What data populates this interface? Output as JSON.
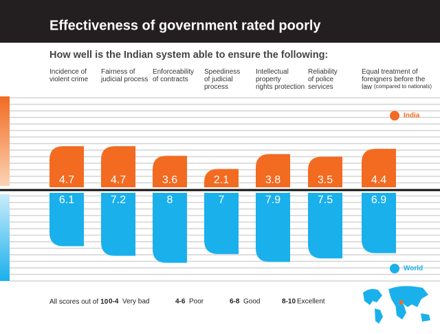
{
  "chart_data": {
    "type": "bar",
    "title": "Effectiveness of government rated poorly",
    "subtitle": "How well is the Indian system able to ensure the following:",
    "categories": [
      "Incidence of\nviolent crime",
      "Fairness of\njudicial process",
      "Enforceability\nof contracts",
      "Speediness\nof judicial\nprocess",
      "Intellectual\nproperty\nrights protection",
      "Reliability\nof police\nservices",
      "Equal treatment of\nforeigners before the\nlaw"
    ],
    "category_note": "(compared to nationals)",
    "series": [
      {
        "name": "India",
        "color": "#f26b21",
        "values": [
          4.7,
          4.7,
          3.6,
          2.1,
          3.8,
          3.5,
          4.4
        ]
      },
      {
        "name": "World",
        "color": "#1ab0ec",
        "values": [
          6.1,
          7.2,
          8,
          7,
          7.9,
          7.5,
          6.9
        ]
      }
    ],
    "ylim": [
      0,
      10
    ],
    "footer": {
      "note": "All scores out of",
      "max": 10,
      "scale": [
        {
          "range": "0-4",
          "label": "Very bad"
        },
        {
          "range": "4-6",
          "label": "Poor"
        },
        {
          "range": "6-8",
          "label": "Good"
        },
        {
          "range": "8-10",
          "label": "Excellent"
        }
      ]
    }
  }
}
